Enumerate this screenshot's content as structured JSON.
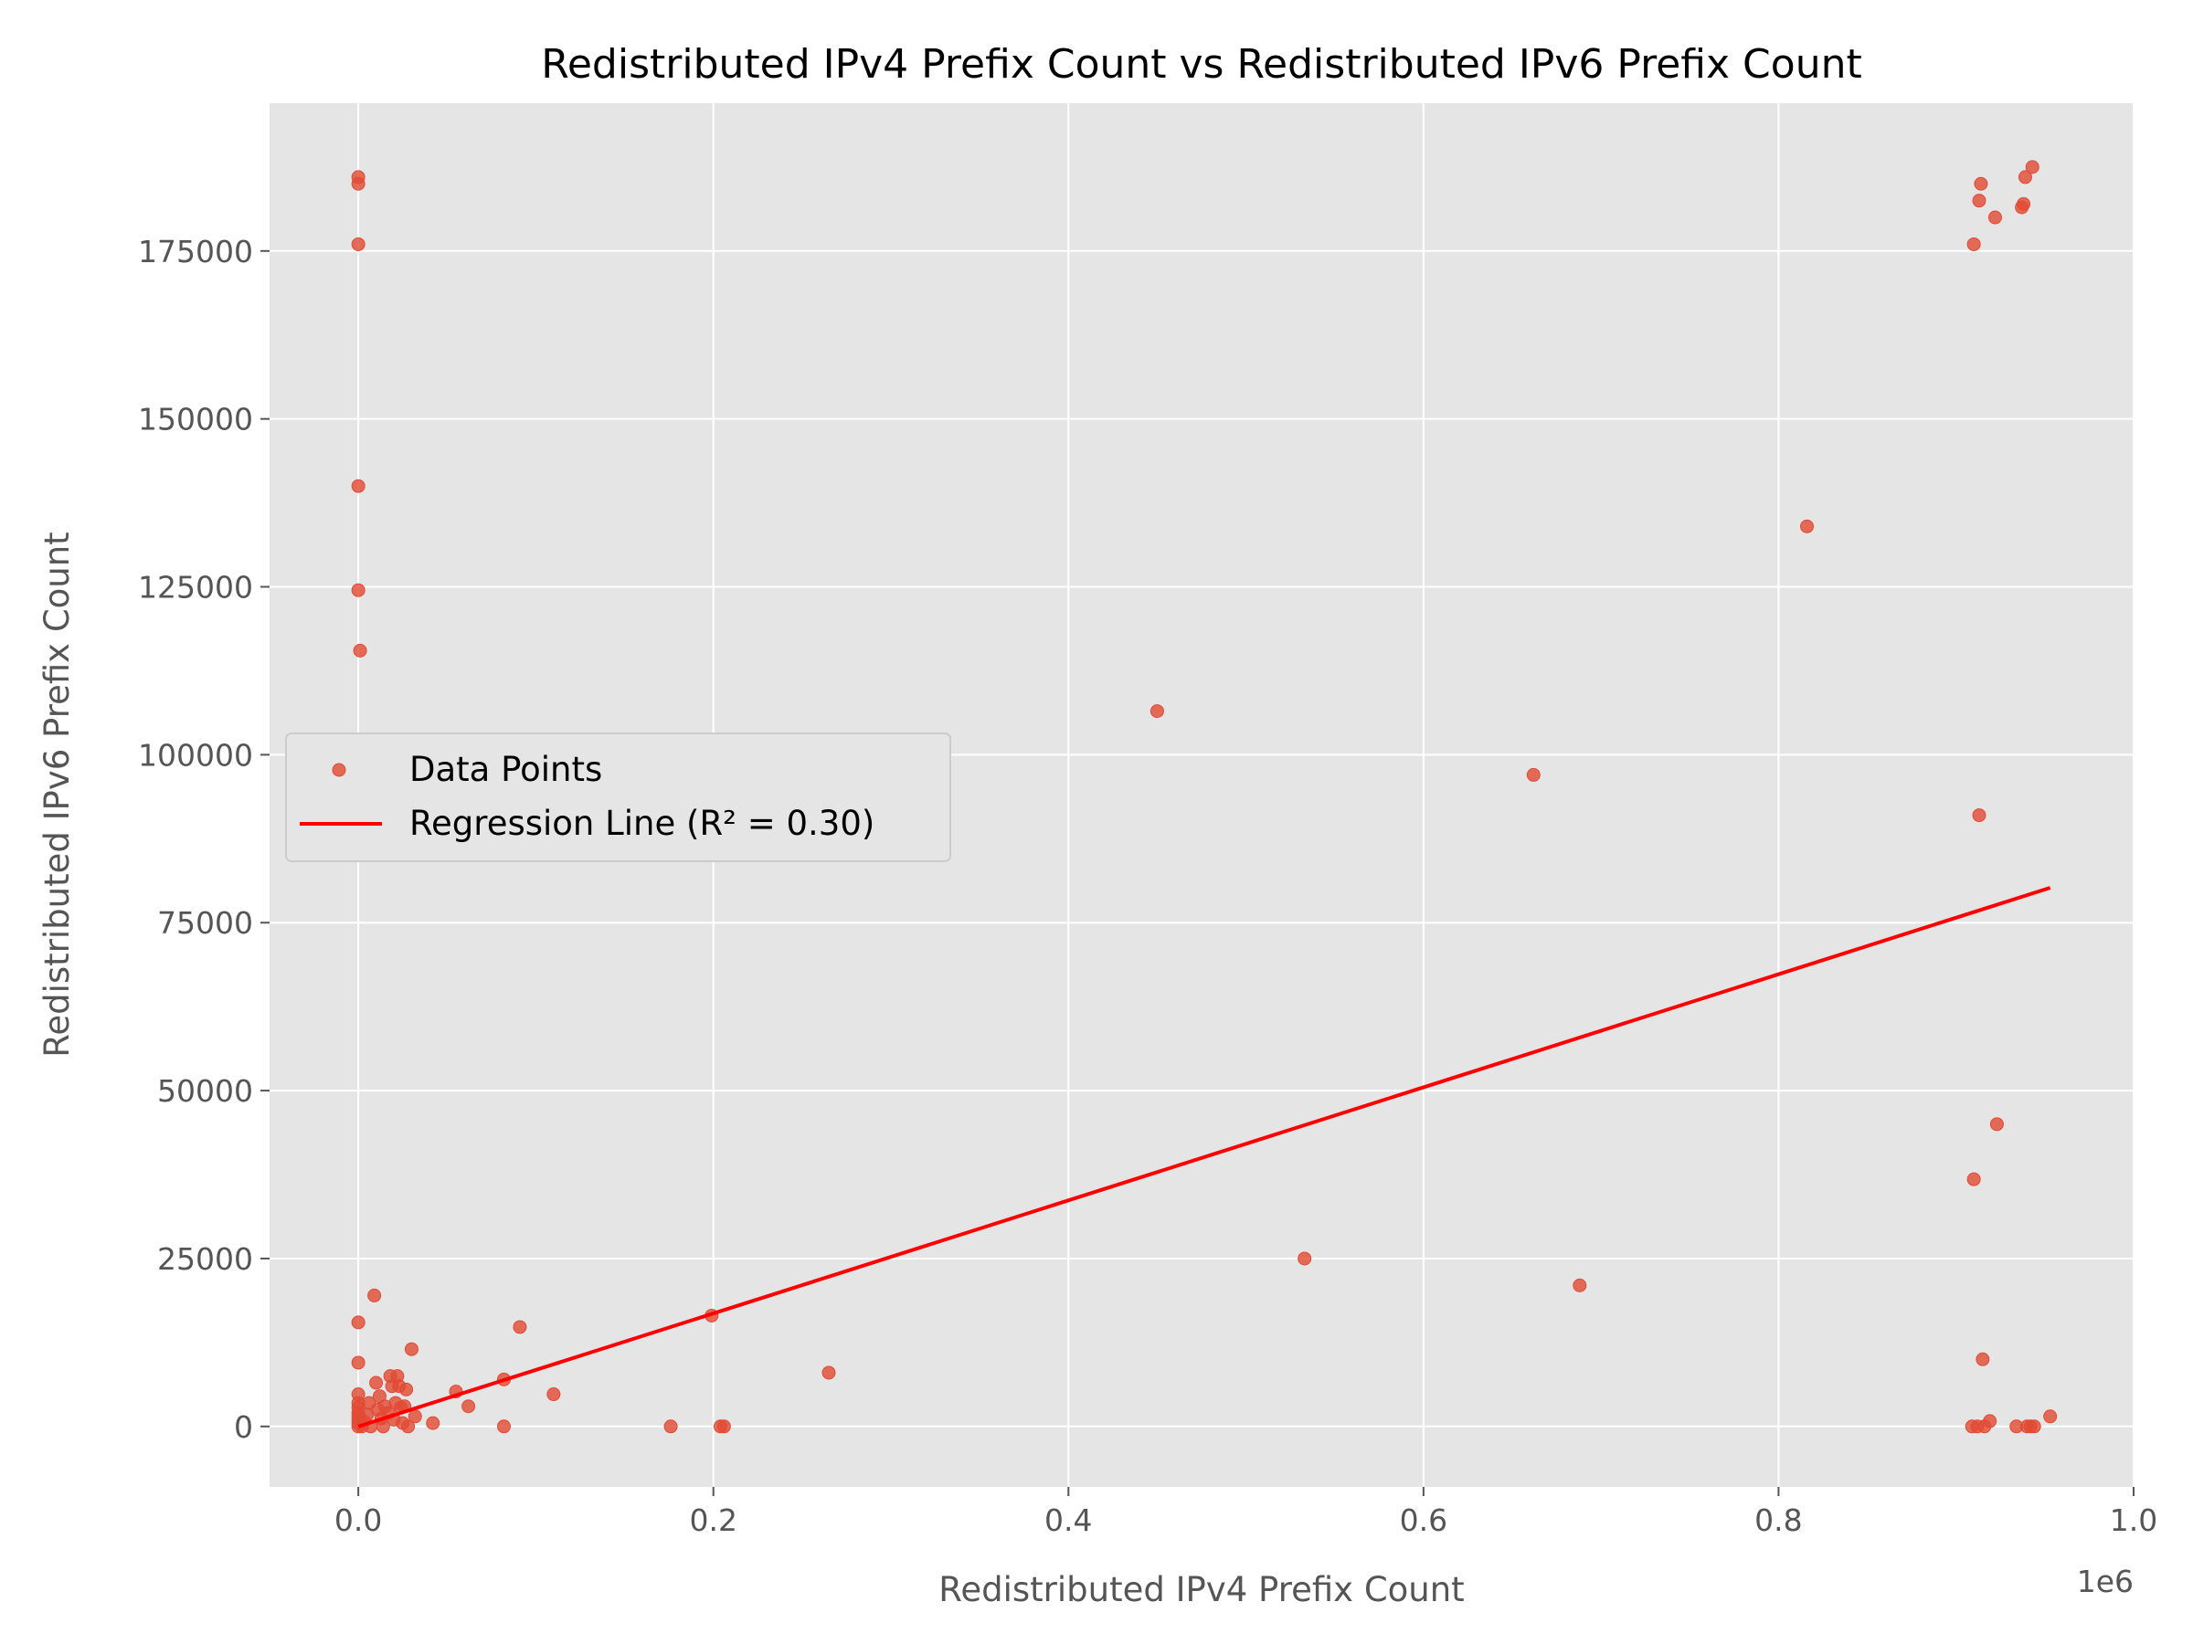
{
  "chart_data": {
    "type": "scatter",
    "title": "Redistributed IPv4 Prefix Count vs Redistributed IPv6 Prefix Count",
    "xlabel": "Redistributed IPv4 Prefix Count",
    "ylabel": "Redistributed IPv6 Prefix Count",
    "x_offset_label": "1e6",
    "xlim": [
      -50000,
      1000000
    ],
    "ylim": [
      -9000,
      197000
    ],
    "x_ticks": [
      0,
      200000,
      400000,
      600000,
      800000,
      1000000
    ],
    "x_tick_labels": [
      "0.0",
      "0.2",
      "0.4",
      "0.6",
      "0.8",
      "1.0"
    ],
    "y_ticks": [
      0,
      25000,
      50000,
      75000,
      100000,
      125000,
      150000,
      175000
    ],
    "y_tick_labels": [
      "0",
      "25000",
      "50000",
      "75000",
      "100000",
      "125000",
      "150000",
      "175000"
    ],
    "grid": true,
    "legend_position": "center-left",
    "colors": {
      "points": "#e24a33",
      "line": "#ff0000",
      "plot_bg": "#e5e5e5",
      "grid": "#ffffff"
    },
    "series": [
      {
        "name": "Data Points",
        "kind": "scatter",
        "points": [
          [
            0,
            186000
          ],
          [
            0,
            185000
          ],
          [
            0,
            176000
          ],
          [
            0,
            140000
          ],
          [
            0,
            124500
          ],
          [
            1000,
            115500
          ],
          [
            0,
            15500
          ],
          [
            0,
            9500
          ],
          [
            0,
            4800
          ],
          [
            0,
            3500
          ],
          [
            0,
            2800
          ],
          [
            0,
            2000
          ],
          [
            0,
            1500
          ],
          [
            0,
            1000
          ],
          [
            0,
            500
          ],
          [
            0,
            0
          ],
          [
            2000,
            0
          ],
          [
            3000,
            800
          ],
          [
            5000,
            1800
          ],
          [
            6000,
            3500
          ],
          [
            7000,
            0
          ],
          [
            9000,
            19500
          ],
          [
            10000,
            6500
          ],
          [
            11000,
            2500
          ],
          [
            12000,
            4500
          ],
          [
            13000,
            1200
          ],
          [
            14000,
            0
          ],
          [
            15000,
            3000
          ],
          [
            17000,
            2000
          ],
          [
            18000,
            7500
          ],
          [
            19000,
            6000
          ],
          [
            20000,
            1000
          ],
          [
            21000,
            3500
          ],
          [
            22000,
            7500
          ],
          [
            23000,
            6000
          ],
          [
            24000,
            2800
          ],
          [
            25000,
            500
          ],
          [
            26000,
            3000
          ],
          [
            27000,
            5500
          ],
          [
            28000,
            0
          ],
          [
            30000,
            11500
          ],
          [
            32000,
            1500
          ],
          [
            42000,
            500
          ],
          [
            55000,
            5200
          ],
          [
            62000,
            3000
          ],
          [
            82000,
            0
          ],
          [
            82000,
            7000
          ],
          [
            91000,
            14800
          ],
          [
            110000,
            4800
          ],
          [
            176000,
            0
          ],
          [
            199000,
            16500
          ],
          [
            204000,
            0
          ],
          [
            206000,
            0
          ],
          [
            265000,
            8000
          ],
          [
            450000,
            106500
          ],
          [
            533000,
            25000
          ],
          [
            662000,
            97000
          ],
          [
            688000,
            21000
          ],
          [
            816000,
            134000
          ],
          [
            909000,
            0
          ],
          [
            910000,
            36800
          ],
          [
            910000,
            176000
          ],
          [
            912000,
            0
          ],
          [
            913000,
            91000
          ],
          [
            913000,
            182500
          ],
          [
            914000,
            185000
          ],
          [
            915000,
            10000
          ],
          [
            916000,
            0
          ],
          [
            919000,
            800
          ],
          [
            922000,
            180000
          ],
          [
            923000,
            45000
          ],
          [
            934000,
            0
          ],
          [
            937000,
            181500
          ],
          [
            938000,
            182000
          ],
          [
            939000,
            186000
          ],
          [
            940000,
            0
          ],
          [
            942000,
            0
          ],
          [
            943000,
            187500
          ],
          [
            944000,
            0
          ],
          [
            953000,
            1500
          ]
        ]
      },
      {
        "name": "Regression Line (R² = 0.30)",
        "kind": "line",
        "points": [
          [
            0,
            0
          ],
          [
            953000,
            80200
          ]
        ]
      }
    ]
  }
}
